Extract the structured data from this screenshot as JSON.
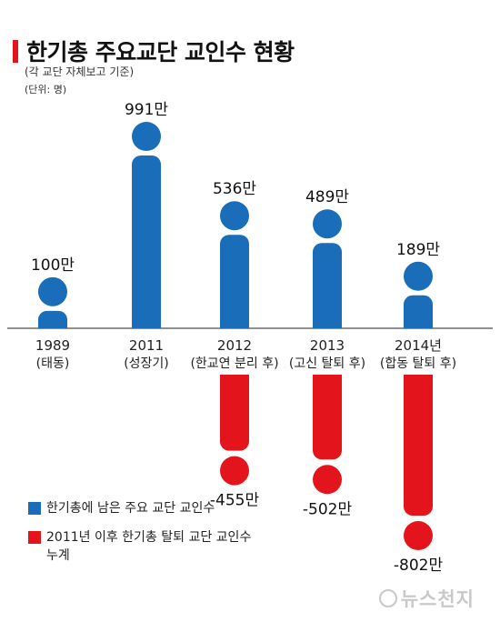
{
  "title": "한기총 주요교단 교인수 현황",
  "subtitle": "(각 교단 자체보고 기준)",
  "unit": "(단위: 명)",
  "legend": [
    {
      "label": "한기총에 남은 주요 교단 교인수",
      "color": "#1a6db8"
    },
    {
      "label": "2011년 이후 한기총 탈퇴 교단 교인수 누계",
      "color": "#e3141c"
    }
  ],
  "watermark": "뉴스천지",
  "chart_data": {
    "type": "bar",
    "categories": [
      {
        "year": "1989",
        "note": "(태동)"
      },
      {
        "year": "2011",
        "note": "(성장기)"
      },
      {
        "year": "2012",
        "note": "(한교연 분리 후)"
      },
      {
        "year": "2013",
        "note": "(고신 탈퇴 후)"
      },
      {
        "year": "2014년",
        "note": "(합동 탈퇴 후)"
      }
    ],
    "series": [
      {
        "name": "한기총에 남은 주요 교단 교인수",
        "color": "#1a6db8",
        "values": [
          100,
          991,
          536,
          489,
          189
        ],
        "labels": [
          "100만",
          "991만",
          "536만",
          "489만",
          "189만"
        ]
      },
      {
        "name": "2011년 이후 한기총 탈퇴 교단 교인수 누계",
        "color": "#e3141c",
        "values": [
          null,
          null,
          -455,
          -502,
          -802
        ],
        "labels": [
          "",
          "",
          "-455만",
          "-502만",
          "-802만"
        ]
      }
    ],
    "unit_suffix": "만"
  }
}
